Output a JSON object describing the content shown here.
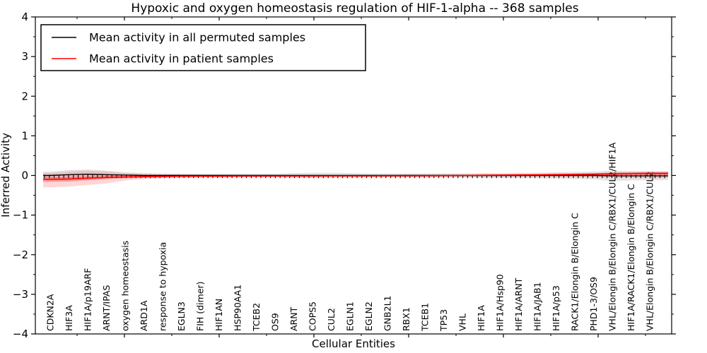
{
  "figure": {
    "title": "Hypoxic and oxygen homeostasis regulation of HIF-1-alpha -- 368 samples",
    "xlabel": "Cellular Entities",
    "ylabel": "Inferred Activity"
  },
  "legend": {
    "entries": [
      {
        "label": "Mean activity in all permuted samples",
        "color": "#000000"
      },
      {
        "label": "Mean activity in patient samples",
        "color": "#ff0000"
      }
    ],
    "position": "upper left"
  },
  "colors": {
    "permuted_line": "#000000",
    "patient_line": "#ff0000",
    "permuted_band": "rgba(0,0,0,0.10)",
    "patient_band_outer": "rgba(255,0,0,0.16)",
    "patient_band_inner": "rgba(255,0,0,0.28)",
    "spine": "#000000",
    "background": "#ffffff"
  },
  "chart_data": {
    "type": "line",
    "title": "Hypoxic and oxygen homeostasis regulation of HIF-1-alpha -- 368 samples",
    "xlabel": "Cellular Entities",
    "ylabel": "Inferred Activity",
    "ylim": [
      -4,
      4
    ],
    "yticks": [
      4,
      3,
      2,
      1,
      0,
      -1,
      -2,
      -3,
      -4
    ],
    "ytick_minor_step": 0.5,
    "grid": false,
    "legend_position": "upper left",
    "categories": [
      "CDKN2A",
      "HIF3A",
      "HIF1A/p19ARF",
      "ARNT/IPAS",
      "oxygen homeostasis",
      "ARD1A",
      "response to hypoxia",
      "EGLN3",
      "FIH (dimer)",
      "HIF1AN",
      "HSP90AA1",
      "TCEB2",
      "OS9",
      "ARNT",
      "COPS5",
      "CUL2",
      "EGLN1",
      "EGLN2",
      "GNB2L1",
      "RBX1",
      "TCEB1",
      "TP53",
      "VHL",
      "HIF1A",
      "HIF1A/Hsp90",
      "HIF1A/ARNT",
      "HIF1A/JAB1",
      "HIF1A/p53",
      "RACK1/Elongin B/Elongin C",
      "PHD1-3/OS9",
      "VHL/Elongin B/Elongin C/RBX1/CUL2/HIF1A",
      "HIF1A/RACK1/Elongin B/Elongin C",
      "VHL/Elongin B/Elongin C/RBX1/CUL2"
    ],
    "series": [
      {
        "name": "Mean activity in all permuted samples",
        "color": "#000000",
        "values": [
          0,
          0.02,
          0.03,
          0.02,
          0.01,
          0,
          0,
          0,
          0,
          0,
          0,
          0,
          0,
          0,
          0,
          0,
          0,
          0,
          0,
          0,
          0,
          0,
          0,
          0,
          0,
          0,
          0,
          0,
          0,
          0,
          -0.01,
          -0.01,
          -0.01
        ],
        "band_half_width": [
          0.1,
          0.12,
          0.12,
          0.1,
          0.07,
          0.06,
          0.05,
          0.045,
          0.045,
          0.045,
          0.045,
          0.045,
          0.045,
          0.06,
          0.07,
          0.07,
          0.06,
          0.05,
          0.05,
          0.05,
          0.05,
          0.05,
          0.05,
          0.06,
          0.06,
          0.07,
          0.07,
          0.08,
          0.09,
          0.1,
          0.13,
          0.12,
          0.11
        ],
        "point_marker": "vertical-dash"
      },
      {
        "name": "Mean activity in patient samples",
        "color": "#ff0000",
        "values": [
          -0.1,
          -0.09,
          -0.07,
          -0.05,
          -0.04,
          -0.03,
          -0.025,
          -0.02,
          -0.02,
          -0.02,
          -0.015,
          -0.015,
          -0.015,
          -0.015,
          -0.015,
          -0.012,
          -0.012,
          -0.012,
          -0.01,
          -0.01,
          -0.008,
          -0.005,
          0.0,
          0.005,
          0.01,
          0.012,
          0.015,
          0.02,
          0.025,
          0.03,
          0.04,
          0.045,
          0.05
        ],
        "band_upper": [
          0.06,
          0.1,
          0.12,
          0.1,
          0.06,
          0.04,
          0.03,
          0.03,
          0.02,
          0.02,
          0.02,
          0.02,
          0.02,
          0.02,
          0.02,
          0.02,
          0.02,
          0.02,
          0.02,
          0.03,
          0.03,
          0.03,
          0.03,
          0.03,
          0.03,
          0.04,
          0.04,
          0.05,
          0.05,
          0.06,
          0.08,
          0.09,
          0.1
        ],
        "band_lower": [
          -0.3,
          -0.28,
          -0.24,
          -0.2,
          -0.13,
          -0.09,
          -0.07,
          -0.06,
          -0.05,
          -0.05,
          -0.045,
          -0.04,
          -0.04,
          -0.04,
          -0.04,
          -0.04,
          -0.04,
          -0.04,
          -0.04,
          -0.045,
          -0.045,
          -0.04,
          -0.04,
          -0.04,
          -0.04,
          -0.04,
          -0.04,
          -0.04,
          -0.04,
          -0.05,
          -0.06,
          -0.06,
          -0.07
        ],
        "band_inner_half_width": [
          0.06,
          0.06,
          0.05,
          0.04,
          0.03,
          0.025,
          0.02,
          0.02,
          0.015,
          0.015,
          0.015,
          0.015,
          0.015,
          0.015,
          0.015,
          0.015,
          0.015,
          0.015,
          0.015,
          0.015,
          0.015,
          0.015,
          0.015,
          0.015,
          0.015,
          0.02,
          0.02,
          0.02,
          0.02,
          0.025,
          0.03,
          0.03,
          0.035
        ]
      }
    ]
  }
}
